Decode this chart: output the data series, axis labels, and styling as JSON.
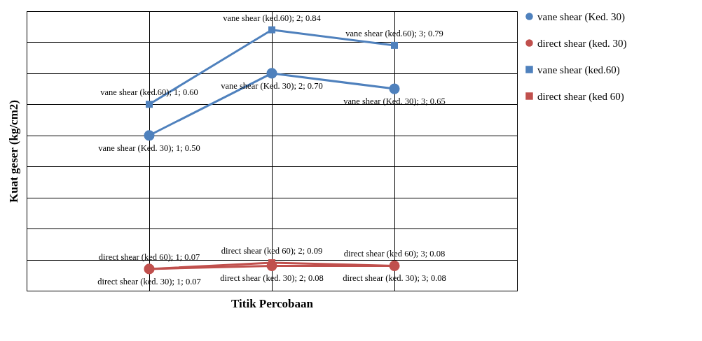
{
  "chart_data": {
    "type": "line",
    "xlabel": "Titik Percobaan",
    "ylabel": "Kuat geser (kg/cm2)",
    "categories": [
      null,
      null,
      null
    ],
    "ylim": [
      0,
      0.9
    ],
    "yticks": [
      0,
      0.1,
      0.2,
      0.3,
      0.4,
      0.5,
      0.6,
      0.7,
      0.8,
      0.9
    ],
    "grid": true,
    "tick_labels": false,
    "legend": "right",
    "series": [
      {
        "name": "vane shear (Ked. 30)",
        "color": "#4f81bd",
        "marker": "circle",
        "values": [
          0.5,
          0.7,
          0.65
        ],
        "value_labels": [
          "vane shear (Ked. 30); 1; 0.50",
          "vane shear (Ked. 30); 2; 0.70",
          "vane shear (Ked. 30); 3; 0.65"
        ]
      },
      {
        "name": "direct shear (ked. 30)",
        "color": "#c0504d",
        "marker": "circle",
        "values": [
          0.07,
          0.08,
          0.08
        ],
        "value_labels": [
          "direct shear (ked. 30); 1; 0.07",
          "direct shear (ked. 30); 2; 0.08",
          "direct shear (ked. 30); 3; 0.08"
        ]
      },
      {
        "name": "vane shear (ked.60)",
        "color": "#4f81bd",
        "marker": "square",
        "values": [
          0.6,
          0.84,
          0.79
        ],
        "value_labels": [
          "vane shear (ked.60); 1; 0.60",
          "vane shear (ked.60); 2; 0.84",
          "vane shear (ked.60); 3; 0.79"
        ]
      },
      {
        "name": "direct shear (ked 60)",
        "color": "#c0504d",
        "marker": "square",
        "values": [
          0.07,
          0.09,
          0.08
        ],
        "value_labels": [
          "direct shear (ked 60); 1; 0.07",
          "direct shear (ked 60); 2; 0.09",
          "direct shear (ked 60); 3; 0.08"
        ]
      }
    ]
  }
}
